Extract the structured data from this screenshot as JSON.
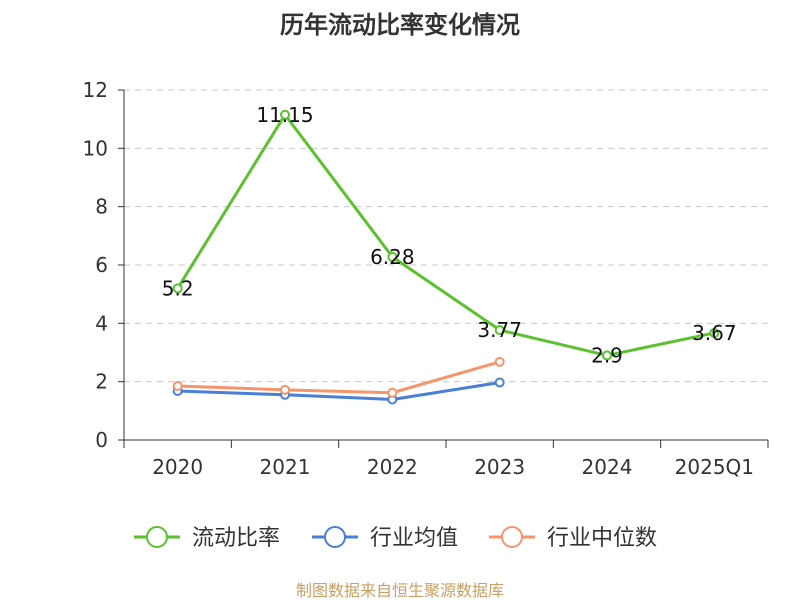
{
  "chart_data": {
    "type": "line",
    "title": "历年流动比率变化情况",
    "categories": [
      "2020",
      "2021",
      "2022",
      "2023",
      "2024",
      "2025Q1"
    ],
    "ylim": [
      0,
      12
    ],
    "yticks": [
      0,
      2,
      4,
      6,
      8,
      10,
      12
    ],
    "grid": true,
    "legend_position": "bottom",
    "series": [
      {
        "name": "流动比率",
        "color": "#5bc12e",
        "values": [
          5.2,
          11.15,
          6.28,
          3.77,
          2.9,
          3.67
        ],
        "labels": [
          "5.2",
          "11.15",
          "6.28",
          "3.77",
          "2.9",
          "3.67"
        ]
      },
      {
        "name": "行业均值",
        "color": "#4a7fd6",
        "values": [
          1.68,
          1.55,
          1.39,
          1.97,
          null,
          null
        ]
      },
      {
        "name": "行业中位数",
        "color": "#f5956a",
        "values": [
          1.85,
          1.72,
          1.62,
          2.68,
          null,
          null
        ]
      }
    ],
    "source": "制图数据来自恒生聚源数据库"
  }
}
